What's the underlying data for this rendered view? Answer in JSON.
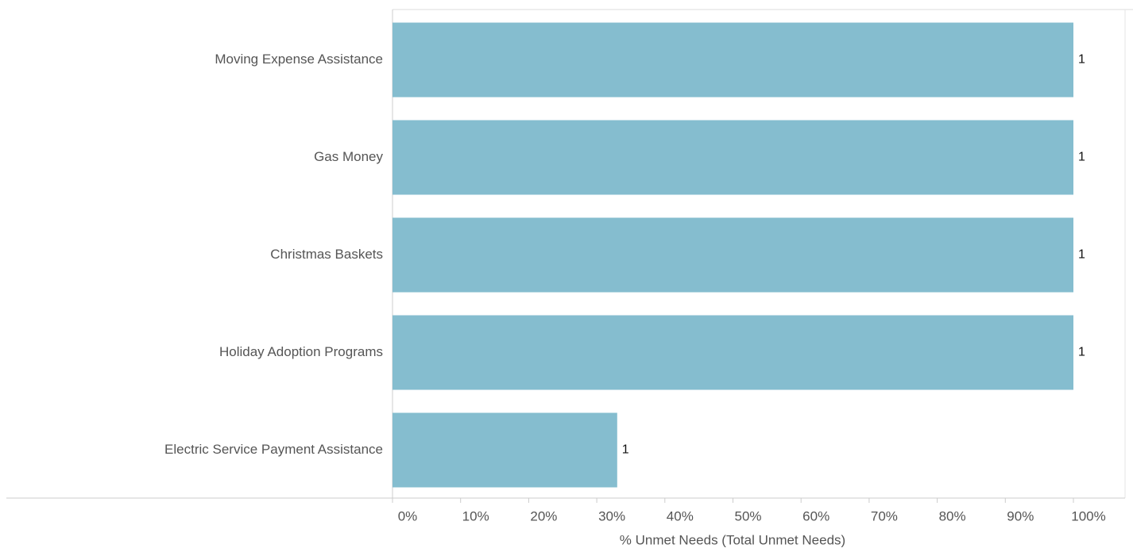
{
  "chart_data": {
    "type": "hbar",
    "categories": [
      "Moving Expense Assistance",
      "Gas Money",
      "Christmas Baskets",
      "Holiday Adoption Programs",
      "Electric Service Payment Assistance"
    ],
    "values": [
      100,
      100,
      100,
      100,
      33
    ],
    "counts": [
      1,
      1,
      1,
      1,
      1
    ],
    "color": "#85bdcf",
    "xlabel": "% Unmet Needs (Total Unmet Needs)",
    "xlim": [
      0,
      100
    ],
    "xticks": [
      {
        "value": 0,
        "label": "0%"
      },
      {
        "value": 10,
        "label": "10%"
      },
      {
        "value": 20,
        "label": "20%"
      },
      {
        "value": 30,
        "label": "30%"
      },
      {
        "value": 40,
        "label": "40%"
      },
      {
        "value": 50,
        "label": "50%"
      },
      {
        "value": 60,
        "label": "60%"
      },
      {
        "value": 70,
        "label": "70%"
      },
      {
        "value": 80,
        "label": "80%"
      },
      {
        "value": 90,
        "label": "90%"
      },
      {
        "value": 100,
        "label": "100%"
      }
    ],
    "grid": false
  }
}
